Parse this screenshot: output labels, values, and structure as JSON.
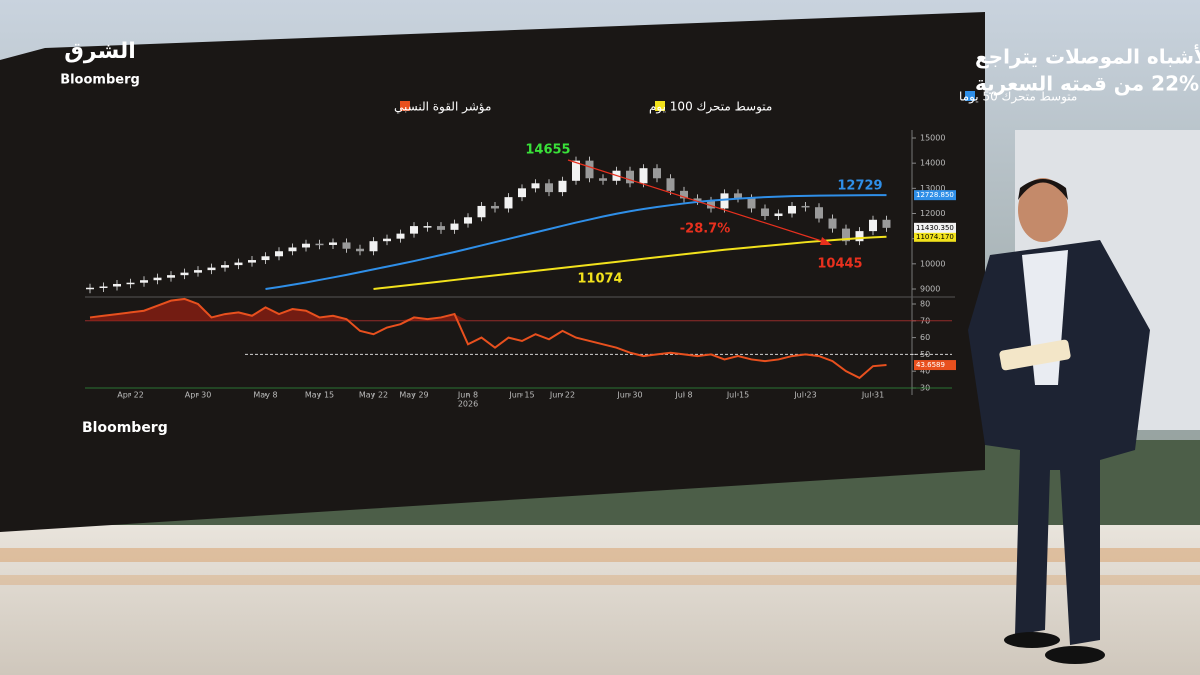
{
  "logo": {
    "arabic": "الشرق",
    "latin": "Bloomberg"
  },
  "chart_data": {
    "type": "candlestick",
    "title": [
      "مؤشر فيلادلفيا لأشباه الموصلات يتراجع",
      "22% من قمته السعرية"
    ],
    "categories": [
      null,
      null,
      null,
      "Apr 22",
      null,
      null,
      null,
      null,
      "Apr 30",
      null,
      null,
      null,
      null,
      "May 8",
      null,
      null,
      null,
      "May 15",
      null,
      null,
      null,
      "May 22",
      null,
      null,
      "May 29",
      null,
      null,
      null,
      "Jun 8",
      null,
      null,
      null,
      "Jun 15",
      null,
      null,
      "Jun 22",
      null,
      null,
      null,
      null,
      "Jun 30",
      null,
      null,
      null,
      "Jul 8",
      null,
      null,
      null,
      "Jul 15",
      null,
      null,
      null,
      null,
      "Jul 23",
      null,
      null,
      null,
      null,
      "Jul 31",
      null
    ],
    "year_label": "2026",
    "candles": {
      "open": [
        9000,
        9050,
        9100,
        9200,
        9250,
        9350,
        9450,
        9550,
        9650,
        9750,
        9850,
        9950,
        10050,
        10150,
        10300,
        10500,
        10650,
        10800,
        10750,
        10850,
        10600,
        10500,
        10900,
        11000,
        11200,
        11500,
        11500,
        11350,
        11600,
        11850,
        12300,
        12200,
        12650,
        13000,
        13200,
        12850,
        13300,
        14100,
        13400,
        13300,
        13700,
        13200,
        13800,
        13400,
        12900,
        12600,
        12500,
        12200,
        12800,
        12600,
        12200,
        11900,
        12000,
        12300,
        12250,
        11800,
        11400,
        10900,
        11300,
        11750
      ],
      "close": [
        9050,
        9100,
        9200,
        9250,
        9350,
        9450,
        9550,
        9650,
        9750,
        9850,
        9950,
        10050,
        10150,
        10300,
        10500,
        10650,
        10800,
        10750,
        10850,
        10600,
        10500,
        10900,
        11000,
        11200,
        11500,
        11500,
        11350,
        11600,
        11850,
        12300,
        12200,
        12650,
        13000,
        13200,
        12850,
        13300,
        14100,
        13400,
        13300,
        13700,
        13200,
        13800,
        13400,
        12900,
        12600,
        12500,
        12200,
        12800,
        12600,
        12200,
        11900,
        12000,
        12300,
        12250,
        11800,
        11400,
        10900,
        11300,
        11750,
        11430.35
      ],
      "last_label": "11430.350"
    },
    "series": [
      {
        "name": "متوسط متحرك 50 يوما",
        "color": "#2f8fe8",
        "last_label": "12728.850",
        "values": [
          null,
          null,
          null,
          null,
          null,
          null,
          null,
          null,
          null,
          null,
          null,
          null,
          null,
          9000,
          9080,
          9170,
          9260,
          9360,
          9460,
          9560,
          9670,
          9780,
          9890,
          10000,
          10110,
          10230,
          10350,
          10470,
          10600,
          10730,
          10860,
          10990,
          11120,
          11250,
          11380,
          11510,
          11640,
          11760,
          11880,
          11990,
          12090,
          12180,
          12260,
          12330,
          12400,
          12460,
          12510,
          12550,
          12590,
          12620,
          12650,
          12670,
          12690,
          12700,
          12710,
          12715,
          12720,
          12725,
          12728,
          12728.85
        ]
      },
      {
        "name": "متوسط متحرك 100 يوم",
        "color": "#f2e21c",
        "last_label": "11074.170",
        "values": [
          null,
          null,
          null,
          null,
          null,
          null,
          null,
          null,
          null,
          null,
          null,
          null,
          null,
          null,
          null,
          null,
          null,
          null,
          null,
          null,
          null,
          9000,
          9060,
          9120,
          9180,
          9240,
          9300,
          9360,
          9420,
          9480,
          9540,
          9600,
          9660,
          9720,
          9780,
          9840,
          9900,
          9960,
          10020,
          10080,
          10140,
          10200,
          10260,
          10320,
          10380,
          10440,
          10500,
          10560,
          10610,
          10660,
          10710,
          10760,
          10810,
          10860,
          10900,
          10940,
          10980,
          11020,
          11050,
          11074.17
        ]
      },
      {
        "name": "مؤشر القوة النسبي",
        "color": "#e8501e",
        "axis": "rsi",
        "last_label": "43.6589",
        "values": [
          72,
          73,
          74,
          75,
          76,
          79,
          82,
          83,
          80,
          72,
          74,
          75,
          73,
          78,
          74,
          77,
          76,
          72,
          73,
          71,
          64,
          62,
          66,
          68,
          72,
          71,
          72,
          74,
          56,
          60,
          54,
          60,
          58,
          62,
          59,
          64,
          60,
          58,
          56,
          54,
          51,
          49,
          50,
          51,
          50,
          49,
          50,
          47,
          49,
          47,
          46,
          47,
          49,
          50,
          49,
          46,
          40,
          36,
          43,
          43.6589
        ]
      }
    ],
    "ylim": [
      9000,
      15000
    ],
    "yticks": [
      9000,
      10000,
      11000,
      12000,
      13000,
      14000,
      15000
    ],
    "rsi_ylim": [
      30,
      80
    ],
    "rsi_yticks": [
      30,
      40,
      50,
      60,
      70,
      80
    ],
    "rsi_levels": [
      {
        "value": 70,
        "color": "#b03030"
      },
      {
        "value": 50,
        "color": "#ffffff"
      },
      {
        "value": 30,
        "color": "#2f8a3a"
      }
    ],
    "annotations": [
      {
        "text": "14655",
        "color": "#39e039"
      },
      {
        "text": "12729",
        "color": "#2f8fe8"
      },
      {
        "text": "11074",
        "color": "#f2e21c"
      },
      {
        "text": "-28.7%",
        "color": "#e8301e"
      },
      {
        "text": "10445",
        "color": "#e8301e"
      }
    ],
    "source": "Bloomberg"
  }
}
